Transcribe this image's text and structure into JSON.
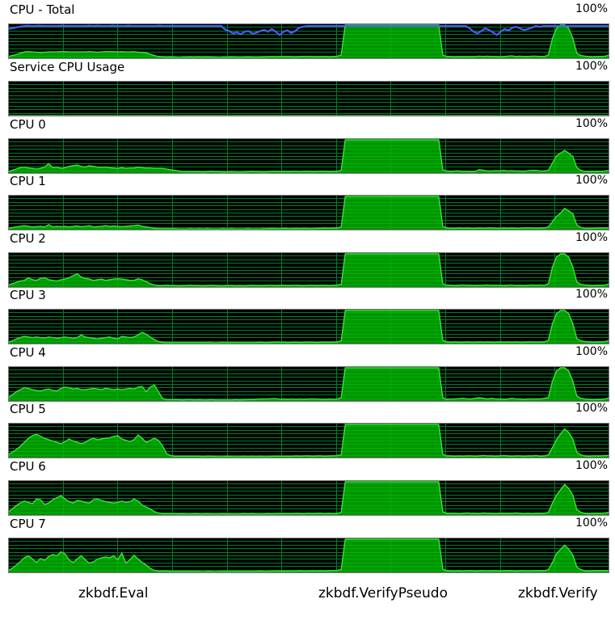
{
  "max_label": "100%",
  "panels": [
    {
      "title": "CPU - Total",
      "values": [
        5,
        8,
        11,
        15,
        19,
        20,
        19,
        18,
        17,
        18,
        19,
        19,
        19,
        20,
        20,
        19,
        19,
        19,
        19,
        19,
        20,
        19,
        18,
        19,
        20,
        20,
        20,
        19,
        20,
        19,
        19,
        20,
        18,
        17,
        16,
        12,
        8,
        5,
        4,
        3,
        4,
        3,
        2,
        3,
        3,
        4,
        3,
        4,
        3,
        4,
        3,
        3,
        2,
        3,
        3,
        4,
        3,
        3,
        3,
        4,
        3,
        3,
        3,
        4,
        4,
        5,
        4,
        5,
        5,
        5,
        4,
        4,
        5,
        5,
        5,
        5,
        4,
        5,
        5,
        4,
        5,
        6,
        10,
        100,
        100,
        100,
        100,
        100,
        100,
        100,
        100,
        100,
        100,
        100,
        100,
        100,
        100,
        100,
        100,
        100,
        100,
        100,
        100,
        100,
        100,
        100,
        100,
        10,
        5,
        5,
        4,
        5,
        4,
        5,
        4,
        5,
        6,
        5,
        6,
        5,
        5,
        4,
        5,
        6,
        7,
        5,
        6,
        5,
        5,
        6,
        6,
        5,
        5,
        10,
        60,
        90,
        100,
        100,
        90,
        60,
        15,
        8,
        6,
        5,
        4,
        5,
        5,
        6,
        10
      ],
      "overlay": [
        88,
        90,
        93,
        95,
        97,
        98,
        97,
        97,
        98,
        97,
        97,
        97,
        97,
        97,
        98,
        97,
        97,
        97,
        97,
        97,
        97,
        98,
        97,
        98,
        97,
        97,
        97,
        98,
        97,
        97,
        97,
        98,
        97,
        97,
        97,
        97,
        97,
        97,
        97,
        98,
        97,
        97,
        97,
        97,
        97,
        97,
        97,
        97,
        97,
        97,
        97,
        97,
        97,
        97,
        97,
        97,
        86,
        82,
        75,
        78,
        72,
        80,
        82,
        74,
        77,
        82,
        85,
        80,
        88,
        80,
        70,
        80,
        84,
        76,
        82,
        92,
        95,
        97,
        97,
        97,
        97,
        97,
        97,
        97,
        97,
        97,
        97,
        97,
        97,
        97,
        97,
        97,
        97,
        97,
        97,
        97,
        97,
        97,
        97,
        97,
        97,
        97,
        97,
        97,
        97,
        97,
        97,
        97,
        97,
        97,
        97,
        97,
        97,
        97,
        97,
        97,
        97,
        97,
        97,
        90,
        80,
        75,
        82,
        90,
        85,
        78,
        70,
        80,
        88,
        84,
        92,
        95,
        90,
        85,
        88,
        92,
        97,
        95,
        97,
        97,
        97,
        97,
        97,
        97,
        97,
        97,
        97,
        97,
        97,
        97,
        97,
        97,
        97,
        97,
        97,
        97
      ]
    },
    {
      "title": "Service CPU Usage",
      "values": [
        0,
        0,
        0,
        0,
        0,
        0,
        0,
        0,
        0,
        0,
        0,
        0,
        0,
        0,
        0,
        0,
        0,
        0,
        0,
        0,
        0,
        0,
        0,
        0,
        0,
        0,
        0,
        0,
        0,
        0,
        0,
        0,
        0,
        0,
        0,
        0,
        0,
        0,
        0,
        0,
        0,
        0,
        0,
        0,
        0,
        0,
        0,
        0,
        0,
        0,
        0,
        0,
        0,
        0,
        0,
        0,
        0,
        0,
        0,
        0,
        0,
        0,
        0,
        0,
        0,
        0,
        0,
        0,
        0,
        0,
        0,
        0,
        0,
        0,
        0,
        0,
        0,
        0,
        0,
        0,
        0,
        0,
        0,
        0,
        0,
        0,
        0,
        0,
        0,
        0,
        0,
        0,
        0,
        0,
        0,
        0,
        0,
        0,
        0,
        0,
        0,
        0,
        0,
        0,
        0,
        0,
        0,
        0,
        0,
        0,
        0,
        0,
        0,
        0,
        0,
        0,
        0,
        0,
        0,
        0,
        0,
        0,
        0,
        0,
        0,
        0,
        0,
        0,
        0,
        0,
        0,
        0,
        0,
        0,
        0,
        0,
        0,
        0,
        0,
        0,
        0,
        0,
        0,
        0,
        0,
        0,
        0,
        0,
        0,
        0,
        0
      ]
    },
    {
      "title": "CPU 0",
      "values": [
        4,
        8,
        12,
        16,
        18,
        15,
        14,
        12,
        14,
        18,
        28,
        16,
        18,
        14,
        16,
        20,
        22,
        24,
        20,
        18,
        22,
        20,
        18,
        17,
        18,
        16,
        15,
        14,
        16,
        14,
        15,
        15,
        18,
        16,
        15,
        15,
        14,
        14,
        14,
        12,
        10,
        8,
        6,
        4,
        4,
        4,
        4,
        4,
        3,
        4,
        5,
        4,
        4,
        3,
        3,
        4,
        3,
        3,
        3,
        4,
        5,
        4,
        4,
        3,
        4,
        5,
        5,
        4,
        5,
        4,
        5,
        5,
        4,
        5,
        5,
        4,
        5,
        5,
        5,
        4,
        5,
        5,
        8,
        100,
        100,
        100,
        100,
        100,
        100,
        100,
        100,
        100,
        100,
        100,
        100,
        100,
        100,
        100,
        100,
        100,
        100,
        100,
        100,
        100,
        100,
        100,
        100,
        10,
        6,
        5,
        6,
        6,
        5,
        5,
        4,
        5,
        10,
        8,
        6,
        6,
        7,
        6,
        8,
        6,
        7,
        6,
        6,
        5,
        7,
        8,
        8,
        6,
        6,
        8,
        30,
        52,
        60,
        68,
        60,
        50,
        16,
        8,
        5,
        4,
        5,
        5,
        5,
        6,
        8
      ]
    },
    {
      "title": "CPU 1",
      "values": [
        4,
        6,
        8,
        10,
        12,
        10,
        8,
        9,
        10,
        8,
        15,
        8,
        10,
        9,
        10,
        8,
        10,
        11,
        9,
        10,
        12,
        8,
        9,
        10,
        12,
        10,
        11,
        10,
        9,
        10,
        11,
        12,
        14,
        10,
        8,
        6,
        4,
        3,
        3,
        3,
        3,
        3,
        2,
        2,
        2,
        3,
        2,
        3,
        2,
        3,
        2,
        2,
        2,
        3,
        2,
        3,
        2,
        2,
        2,
        3,
        2,
        2,
        2,
        3,
        3,
        4,
        3,
        3,
        4,
        3,
        3,
        4,
        3,
        4,
        3,
        3,
        4,
        4,
        5,
        4,
        5,
        5,
        8,
        100,
        100,
        100,
        100,
        100,
        100,
        100,
        100,
        100,
        100,
        100,
        100,
        100,
        100,
        100,
        100,
        100,
        100,
        100,
        100,
        100,
        100,
        100,
        100,
        10,
        5,
        4,
        4,
        5,
        4,
        5,
        4,
        4,
        5,
        4,
        5,
        5,
        4,
        4,
        5,
        4,
        5,
        4,
        4,
        5,
        5,
        5,
        4,
        5,
        5,
        8,
        24,
        40,
        50,
        64,
        56,
        48,
        14,
        6,
        4,
        4,
        4,
        5,
        5,
        5,
        6
      ]
    },
    {
      "title": "CPU 2",
      "values": [
        6,
        10,
        14,
        18,
        20,
        28,
        22,
        20,
        26,
        28,
        22,
        20,
        18,
        22,
        24,
        28,
        34,
        40,
        30,
        26,
        24,
        20,
        22,
        24,
        20,
        22,
        24,
        25,
        24,
        22,
        20,
        20,
        25,
        22,
        16,
        10,
        6,
        4,
        4,
        5,
        4,
        4,
        3,
        4,
        4,
        5,
        4,
        4,
        3,
        4,
        5,
        4,
        3,
        3,
        4,
        4,
        3,
        4,
        3,
        4,
        5,
        4,
        4,
        4,
        5,
        5,
        4,
        5,
        5,
        4,
        5,
        5,
        4,
        4,
        5,
        5,
        4,
        5,
        5,
        4,
        5,
        6,
        8,
        100,
        100,
        100,
        100,
        100,
        100,
        100,
        100,
        100,
        100,
        100,
        100,
        100,
        100,
        100,
        100,
        100,
        100,
        100,
        100,
        100,
        100,
        100,
        100,
        10,
        5,
        5,
        4,
        5,
        6,
        5,
        5,
        4,
        5,
        5,
        6,
        5,
        5,
        5,
        4,
        5,
        6,
        4,
        5,
        4,
        5,
        6,
        5,
        6,
        5,
        10,
        60,
        90,
        100,
        100,
        90,
        60,
        15,
        8,
        6,
        5,
        4,
        5,
        5,
        6,
        10
      ]
    },
    {
      "title": "CPU 3",
      "values": [
        4,
        8,
        14,
        18,
        22,
        20,
        18,
        20,
        18,
        17,
        20,
        18,
        16,
        18,
        20,
        18,
        16,
        18,
        26,
        20,
        18,
        16,
        14,
        16,
        18,
        20,
        16,
        14,
        22,
        20,
        18,
        20,
        26,
        34,
        28,
        20,
        12,
        6,
        4,
        3,
        3,
        3,
        3,
        3,
        3,
        3,
        3,
        3,
        3,
        3,
        3,
        2,
        3,
        3,
        3,
        3,
        3,
        3,
        3,
        3,
        3,
        3,
        4,
        3,
        3,
        4,
        4,
        4,
        4,
        3,
        4,
        4,
        3,
        4,
        4,
        4,
        3,
        4,
        4,
        4,
        4,
        5,
        8,
        100,
        100,
        100,
        100,
        100,
        100,
        100,
        100,
        100,
        100,
        100,
        100,
        100,
        100,
        100,
        100,
        100,
        100,
        100,
        100,
        100,
        100,
        100,
        100,
        10,
        5,
        4,
        5,
        4,
        4,
        5,
        4,
        4,
        5,
        4,
        5,
        4,
        4,
        5,
        4,
        5,
        4,
        5,
        4,
        4,
        5,
        5,
        4,
        5,
        5,
        10,
        60,
        90,
        100,
        100,
        90,
        60,
        15,
        8,
        6,
        5,
        4,
        5,
        5,
        6,
        10
      ]
    },
    {
      "title": "CPU 4",
      "values": [
        10,
        18,
        28,
        34,
        40,
        38,
        34,
        32,
        30,
        34,
        36,
        32,
        30,
        38,
        42,
        40,
        36,
        38,
        34,
        34,
        36,
        38,
        36,
        34,
        38,
        36,
        34,
        36,
        34,
        36,
        38,
        36,
        42,
        44,
        28,
        42,
        48,
        28,
        8,
        4,
        4,
        4,
        4,
        3,
        4,
        4,
        3,
        4,
        3,
        3,
        4,
        3,
        3,
        3,
        3,
        3,
        4,
        3,
        4,
        4,
        5,
        5,
        6,
        6,
        6,
        7,
        7,
        5,
        6,
        5,
        6,
        5,
        6,
        5,
        6,
        6,
        6,
        5,
        5,
        6,
        5,
        6,
        10,
        100,
        100,
        100,
        100,
        100,
        100,
        100,
        100,
        100,
        100,
        100,
        100,
        100,
        100,
        100,
        100,
        100,
        100,
        100,
        100,
        100,
        100,
        100,
        100,
        10,
        5,
        6,
        6,
        7,
        8,
        6,
        6,
        8,
        10,
        8,
        6,
        8,
        6,
        6,
        5,
        6,
        8,
        6,
        6,
        5,
        6,
        6,
        6,
        6,
        8,
        10,
        60,
        90,
        100,
        100,
        90,
        60,
        15,
        8,
        6,
        5,
        4,
        5,
        5,
        6,
        10
      ]
    },
    {
      "title": "CPU 5",
      "values": [
        8,
        16,
        24,
        34,
        46,
        58,
        66,
        70,
        64,
        58,
        54,
        50,
        46,
        42,
        48,
        56,
        50,
        46,
        42,
        46,
        54,
        58,
        54,
        56,
        58,
        60,
        64,
        66,
        56,
        52,
        48,
        54,
        68,
        58,
        46,
        52,
        58,
        52,
        36,
        12,
        6,
        4,
        4,
        4,
        4,
        4,
        4,
        4,
        3,
        4,
        4,
        3,
        3,
        3,
        4,
        3,
        3,
        3,
        4,
        3,
        4,
        3,
        4,
        3,
        3,
        4,
        4,
        4,
        4,
        4,
        4,
        5,
        4,
        5,
        5,
        4,
        5,
        5,
        4,
        5,
        5,
        6,
        8,
        100,
        100,
        100,
        100,
        100,
        100,
        100,
        100,
        100,
        100,
        100,
        100,
        100,
        100,
        100,
        100,
        100,
        100,
        100,
        100,
        100,
        100,
        100,
        100,
        10,
        5,
        5,
        4,
        5,
        4,
        5,
        5,
        4,
        5,
        6,
        5,
        5,
        4,
        5,
        6,
        5,
        4,
        5,
        5,
        4,
        5,
        5,
        6,
        4,
        5,
        8,
        30,
        54,
        72,
        86,
        76,
        56,
        16,
        8,
        5,
        4,
        5,
        5,
        5,
        6,
        6
      ]
    },
    {
      "title": "CPU 6",
      "values": [
        8,
        18,
        28,
        36,
        42,
        38,
        34,
        48,
        46,
        32,
        36,
        46,
        52,
        58,
        48,
        40,
        36,
        44,
        42,
        38,
        36,
        46,
        48,
        44,
        40,
        38,
        36,
        38,
        42,
        38,
        40,
        48,
        42,
        30,
        24,
        18,
        10,
        6,
        4,
        4,
        4,
        4,
        3,
        4,
        3,
        3,
        4,
        3,
        3,
        4,
        3,
        3,
        3,
        4,
        3,
        3,
        3,
        3,
        4,
        3,
        4,
        3,
        3,
        3,
        4,
        3,
        4,
        4,
        4,
        4,
        4,
        5,
        4,
        4,
        5,
        4,
        5,
        5,
        4,
        5,
        4,
        5,
        8,
        100,
        100,
        100,
        100,
        100,
        100,
        100,
        100,
        100,
        100,
        100,
        100,
        100,
        100,
        100,
        100,
        100,
        100,
        100,
        100,
        100,
        100,
        100,
        100,
        10,
        5,
        5,
        5,
        4,
        5,
        6,
        5,
        5,
        4,
        6,
        5,
        5,
        4,
        5,
        5,
        5,
        5,
        6,
        5,
        4,
        5,
        4,
        5,
        5,
        5,
        8,
        36,
        60,
        76,
        92,
        80,
        60,
        16,
        8,
        5,
        4,
        5,
        5,
        5,
        6,
        8
      ]
    },
    {
      "title": "CPU 7",
      "values": [
        6,
        12,
        22,
        32,
        44,
        50,
        40,
        30,
        42,
        36,
        48,
        54,
        50,
        62,
        56,
        38,
        30,
        40,
        50,
        38,
        28,
        32,
        40,
        44,
        46,
        44,
        50,
        38,
        58,
        28,
        38,
        52,
        40,
        30,
        22,
        12,
        6,
        4,
        4,
        4,
        3,
        3,
        3,
        3,
        3,
        3,
        3,
        3,
        2,
        3,
        3,
        2,
        3,
        3,
        3,
        3,
        3,
        3,
        3,
        3,
        3,
        3,
        4,
        3,
        3,
        4,
        4,
        4,
        4,
        4,
        4,
        4,
        5,
        4,
        4,
        5,
        4,
        5,
        4,
        5,
        5,
        6,
        8,
        100,
        100,
        100,
        100,
        100,
        100,
        100,
        100,
        100,
        100,
        100,
        100,
        100,
        100,
        100,
        100,
        100,
        100,
        100,
        100,
        100,
        100,
        100,
        100,
        10,
        5,
        5,
        4,
        5,
        4,
        5,
        5,
        4,
        5,
        5,
        4,
        5,
        5,
        4,
        5,
        5,
        5,
        4,
        5,
        5,
        4,
        5,
        5,
        5,
        5,
        8,
        30,
        56,
        70,
        82,
        70,
        52,
        16,
        8,
        5,
        4,
        5,
        5,
        5,
        5,
        6
      ]
    }
  ],
  "labels": {
    "eval": "zkbdf.Eval",
    "verify_pseudo": "zkbdf.VerifyPseudo",
    "verify": "zkbdf.Verify"
  }
}
